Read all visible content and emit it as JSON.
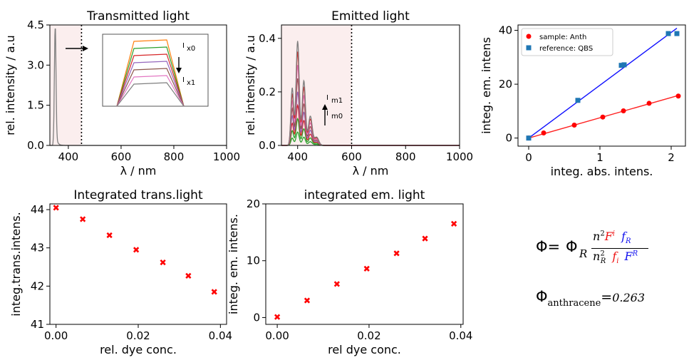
{
  "chart_data": [
    {
      "id": "transmitted",
      "type": "line",
      "title": "Transmitted light",
      "xlabel": "λ / nm",
      "ylabel": "rel. intensity / a.u",
      "xlim": [
        330,
        1000
      ],
      "ylim": [
        0,
        4.5
      ],
      "xticks": [
        400,
        600,
        800,
        1000
      ],
      "yticks": [
        0.0,
        1.5,
        3.0,
        4.5
      ],
      "shaded_region_x": [
        330,
        450
      ],
      "cutoff_x": 450,
      "peak": {
        "x": 350,
        "y": 4.35
      },
      "inset_labels": {
        "top_base": "I",
        "top_sub": "x0",
        "bottom_base": "I",
        "bottom_sub": "x1"
      }
    },
    {
      "id": "emitted",
      "type": "line",
      "title": "Emitted light",
      "xlabel": "λ / nm",
      "ylabel": "rel. intensity / a.u",
      "xlim": [
        340,
        1000
      ],
      "ylim": [
        0,
        0.45
      ],
      "xticks": [
        400,
        600,
        800,
        1000
      ],
      "yticks": [
        0.0,
        0.2,
        0.4
      ],
      "shaded_region_x": [
        340,
        600
      ],
      "cutoff_x": 600,
      "series_peak_scale": [
        0.05,
        0.1,
        0.15,
        0.2,
        0.25,
        0.3,
        0.35,
        0.39
      ],
      "annotation": {
        "top_base": "I",
        "top_sub": "m1",
        "bottom_base": "I",
        "bottom_sub": "m0"
      }
    },
    {
      "id": "calibration",
      "type": "scatter",
      "title": "",
      "xlabel": "integ. abs. intens.",
      "ylabel": "integ. em. intens",
      "xlim": [
        -0.15,
        2.2
      ],
      "ylim": [
        -3,
        42
      ],
      "xticks": [
        0,
        1,
        2
      ],
      "yticks": [
        0,
        20,
        40
      ],
      "legend_position": "top-left",
      "series": [
        {
          "name": "sample: Anth",
          "marker": "circle",
          "color": "#ff0000",
          "line_color": "#ff2020",
          "x": [
            0,
            0.21,
            0.64,
            1.04,
            1.33,
            1.69,
            2.1
          ],
          "y": [
            0,
            1.9,
            4.8,
            7.8,
            10.1,
            12.9,
            15.6
          ]
        },
        {
          "name": "reference: QBS",
          "marker": "square",
          "color": "#1f77b4",
          "line_color": "#1010ff",
          "x": [
            0,
            0.69,
            1.3,
            1.34,
            1.96,
            2.08
          ],
          "y": [
            0,
            14.0,
            27.0,
            27.2,
            38.8,
            38.8
          ]
        }
      ]
    },
    {
      "id": "integrated_trans",
      "type": "scatter",
      "title": "Integrated trans.light",
      "xlabel": "rel. dye conc.",
      "ylabel": "integ.trans.intens.",
      "xlim": [
        -0.0015,
        0.0415
      ],
      "ylim": [
        41,
        44.15
      ],
      "xticks": [
        0.0,
        0.02,
        0.04
      ],
      "xtick_labels": [
        "0.00",
        "0.02",
        "0.04"
      ],
      "yticks": [
        41,
        42,
        43,
        44
      ],
      "marker": "x",
      "color": "#ff0000",
      "x": [
        0.0,
        0.0065,
        0.013,
        0.0195,
        0.026,
        0.0322,
        0.0385
      ],
      "y": [
        44.05,
        43.75,
        43.33,
        42.95,
        42.62,
        42.27,
        41.85
      ]
    },
    {
      "id": "integrated_em",
      "type": "scatter",
      "title": "integrated em. light",
      "xlabel": "rel dye conc.",
      "ylabel": "integ. em. intens.",
      "xlim": [
        -0.0025,
        0.0405
      ],
      "ylim": [
        -1.2,
        20
      ],
      "xticks": [
        0.0,
        0.02,
        0.04
      ],
      "xtick_labels": [
        "0.00",
        "0.02",
        "0.04"
      ],
      "yticks": [
        0,
        10,
        20
      ],
      "marker": "x",
      "color": "#ff0000",
      "x": [
        0.0,
        0.0065,
        0.013,
        0.0195,
        0.026,
        0.0322,
        0.0385
      ],
      "y": [
        0.1,
        3.0,
        5.9,
        8.6,
        11.3,
        13.9,
        16.5
      ]
    }
  ],
  "equation": {
    "lhs": "Φ=",
    "phi": "Φ",
    "phi_sub": "R",
    "n": "n",
    "sq": "2",
    "F": "F",
    "F_sup_i": "i",
    "f": "f",
    "f_sub_R": "R",
    "nR_sub": "R",
    "f_sub_i": "i",
    "F_sup_R": "R",
    "color_red": "#ee1111",
    "color_blue": "#1111ee"
  },
  "result": {
    "phi": "Φ",
    "sub": "anthracene",
    "eq": "=",
    "value": "0.263"
  }
}
